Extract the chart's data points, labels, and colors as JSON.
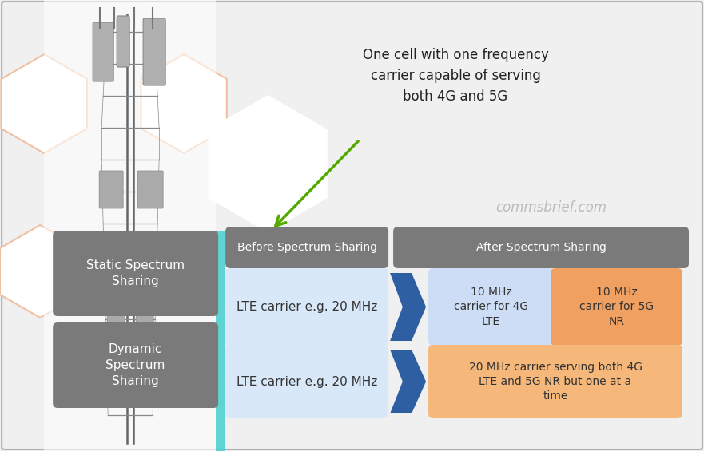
{
  "bg_color": "#f0f0f0",
  "border_color": "#b0b0b0",
  "title_annotation": "One cell with one frequency\ncarrier capable of serving\nboth 4G and 5G",
  "watermark": "commsbrief.com",
  "before_header": "Before Spectrum Sharing",
  "after_header": "After Spectrum Sharing",
  "static_label": "Static Spectrum\nSharing",
  "dynamic_label": "Dynamic\nSpectrum\nSharing",
  "before_static": "LTE carrier e.g. 20 MHz",
  "before_dynamic": "LTE carrier e.g. 20 MHz",
  "after_static_4g": "10 MHz\ncarrier for 4G\nLTE",
  "after_static_5g": "10 MHz\ncarrier for 5G\nNR",
  "after_dynamic": "20 MHz carrier serving both 4G\nLTE and 5G NR but one at a\ntime",
  "gray_header_color": "#7a7a7a",
  "light_blue_color": "#d8e8f8",
  "light_blue2_color": "#ccddf5",
  "orange_color": "#f0a060",
  "peach_color": "#f5b87a",
  "arrow_color": "#2e5fa3",
  "green_arrow_color": "#55aa00",
  "cyan_bar_color": "#50d0d0",
  "hex_edge_color": "#f0c0a0",
  "white": "#ffffff"
}
